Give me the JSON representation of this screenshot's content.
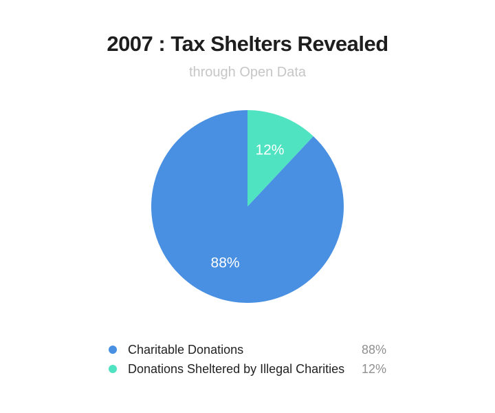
{
  "chart_data": {
    "type": "pie",
    "title": "2007 : Tax Shelters Revealed",
    "subtitle": "through Open Data",
    "slices": [
      {
        "name": "Charitable Donations",
        "value": 88,
        "label": "88%",
        "color": "#4a90e2"
      },
      {
        "name": "Donations Sheltered by Illegal Charities",
        "value": 12,
        "label": "12%",
        "color": "#50e3c2"
      }
    ],
    "legend_placement": "bottom"
  }
}
